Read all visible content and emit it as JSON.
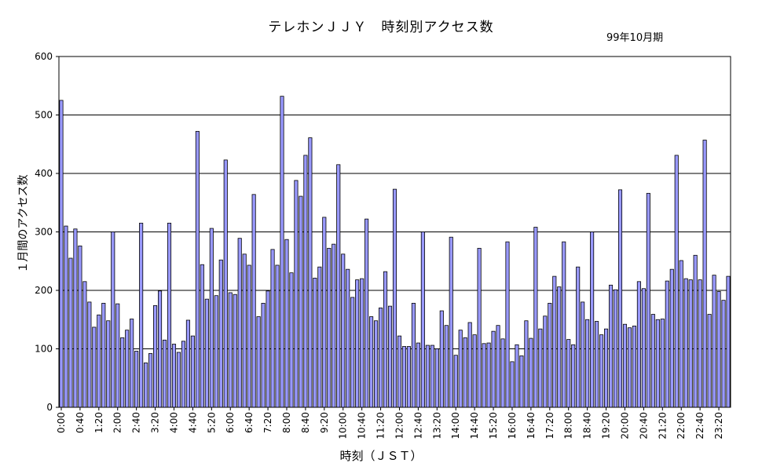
{
  "chart_data": {
    "type": "bar",
    "title": "テレホンＪＪＹ　時刻別アクセス数",
    "subtitle": "99年10月期",
    "xlabel": "時刻（ＪＳＴ）",
    "ylabel": "１月間のアクセス数",
    "ylim": [
      0,
      600
    ],
    "yticks": [
      0,
      100,
      200,
      300,
      400,
      500,
      600
    ],
    "grid": true,
    "bar_color": "#9999FF",
    "x_tick_labels": [
      "0:00",
      "0:40",
      "1:20",
      "2:00",
      "2:40",
      "3:20",
      "4:00",
      "4:40",
      "5:20",
      "6:00",
      "6:40",
      "7:20",
      "8:00",
      "8:40",
      "9:20",
      "10:00",
      "10:40",
      "11:20",
      "12:00",
      "12:40",
      "13:20",
      "14:00",
      "14:40",
      "15:20",
      "16:00",
      "16:40",
      "17:20",
      "18:00",
      "18:40",
      "19:20",
      "20:00",
      "20:40",
      "21:20",
      "22:00",
      "22:40",
      "23:20"
    ],
    "values": [
      525,
      310,
      255,
      305,
      276,
      215,
      180,
      137,
      158,
      178,
      148,
      300,
      177,
      119,
      132,
      151,
      96,
      315,
      76,
      92,
      174,
      199,
      115,
      315,
      108,
      94,
      113,
      149,
      122,
      472,
      244,
      185,
      306,
      191,
      252,
      423,
      196,
      193,
      289,
      262,
      243,
      364,
      155,
      178,
      199,
      270,
      243,
      532,
      287,
      230,
      388,
      361,
      431,
      461,
      221,
      240,
      325,
      272,
      279,
      415,
      262,
      236,
      188,
      218,
      220,
      322,
      155,
      148,
      170,
      232,
      173,
      373,
      122,
      104,
      104,
      178,
      110,
      300,
      106,
      106,
      100,
      165,
      140,
      291,
      89,
      132,
      119,
      145,
      124,
      272,
      109,
      110,
      130,
      140,
      117,
      283,
      78,
      107,
      88,
      148,
      118,
      308,
      134,
      156,
      178,
      224,
      206,
      283,
      116,
      107,
      240,
      180,
      150,
      300,
      147,
      124,
      134,
      209,
      201,
      372,
      142,
      136,
      139,
      215,
      203,
      366,
      159,
      150,
      151,
      216,
      236,
      431,
      251,
      220,
      218,
      260,
      218,
      457,
      159,
      226,
      198,
      183,
      224
    ]
  }
}
